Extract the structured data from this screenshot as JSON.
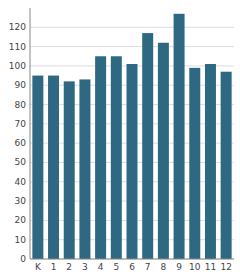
{
  "chart_data": {
    "type": "bar",
    "categories": [
      "K",
      "1",
      "2",
      "3",
      "4",
      "5",
      "6",
      "7",
      "8",
      "9",
      "10",
      "11",
      "12"
    ],
    "values": [
      95,
      95,
      92,
      93,
      105,
      105,
      101,
      117,
      112,
      127,
      99,
      101,
      97
    ],
    "color": "#2e6882",
    "ylim": [
      0,
      130
    ],
    "yticks": [
      0,
      10,
      20,
      30,
      40,
      50,
      60,
      70,
      80,
      90,
      100,
      110,
      120
    ],
    "grid": true
  }
}
